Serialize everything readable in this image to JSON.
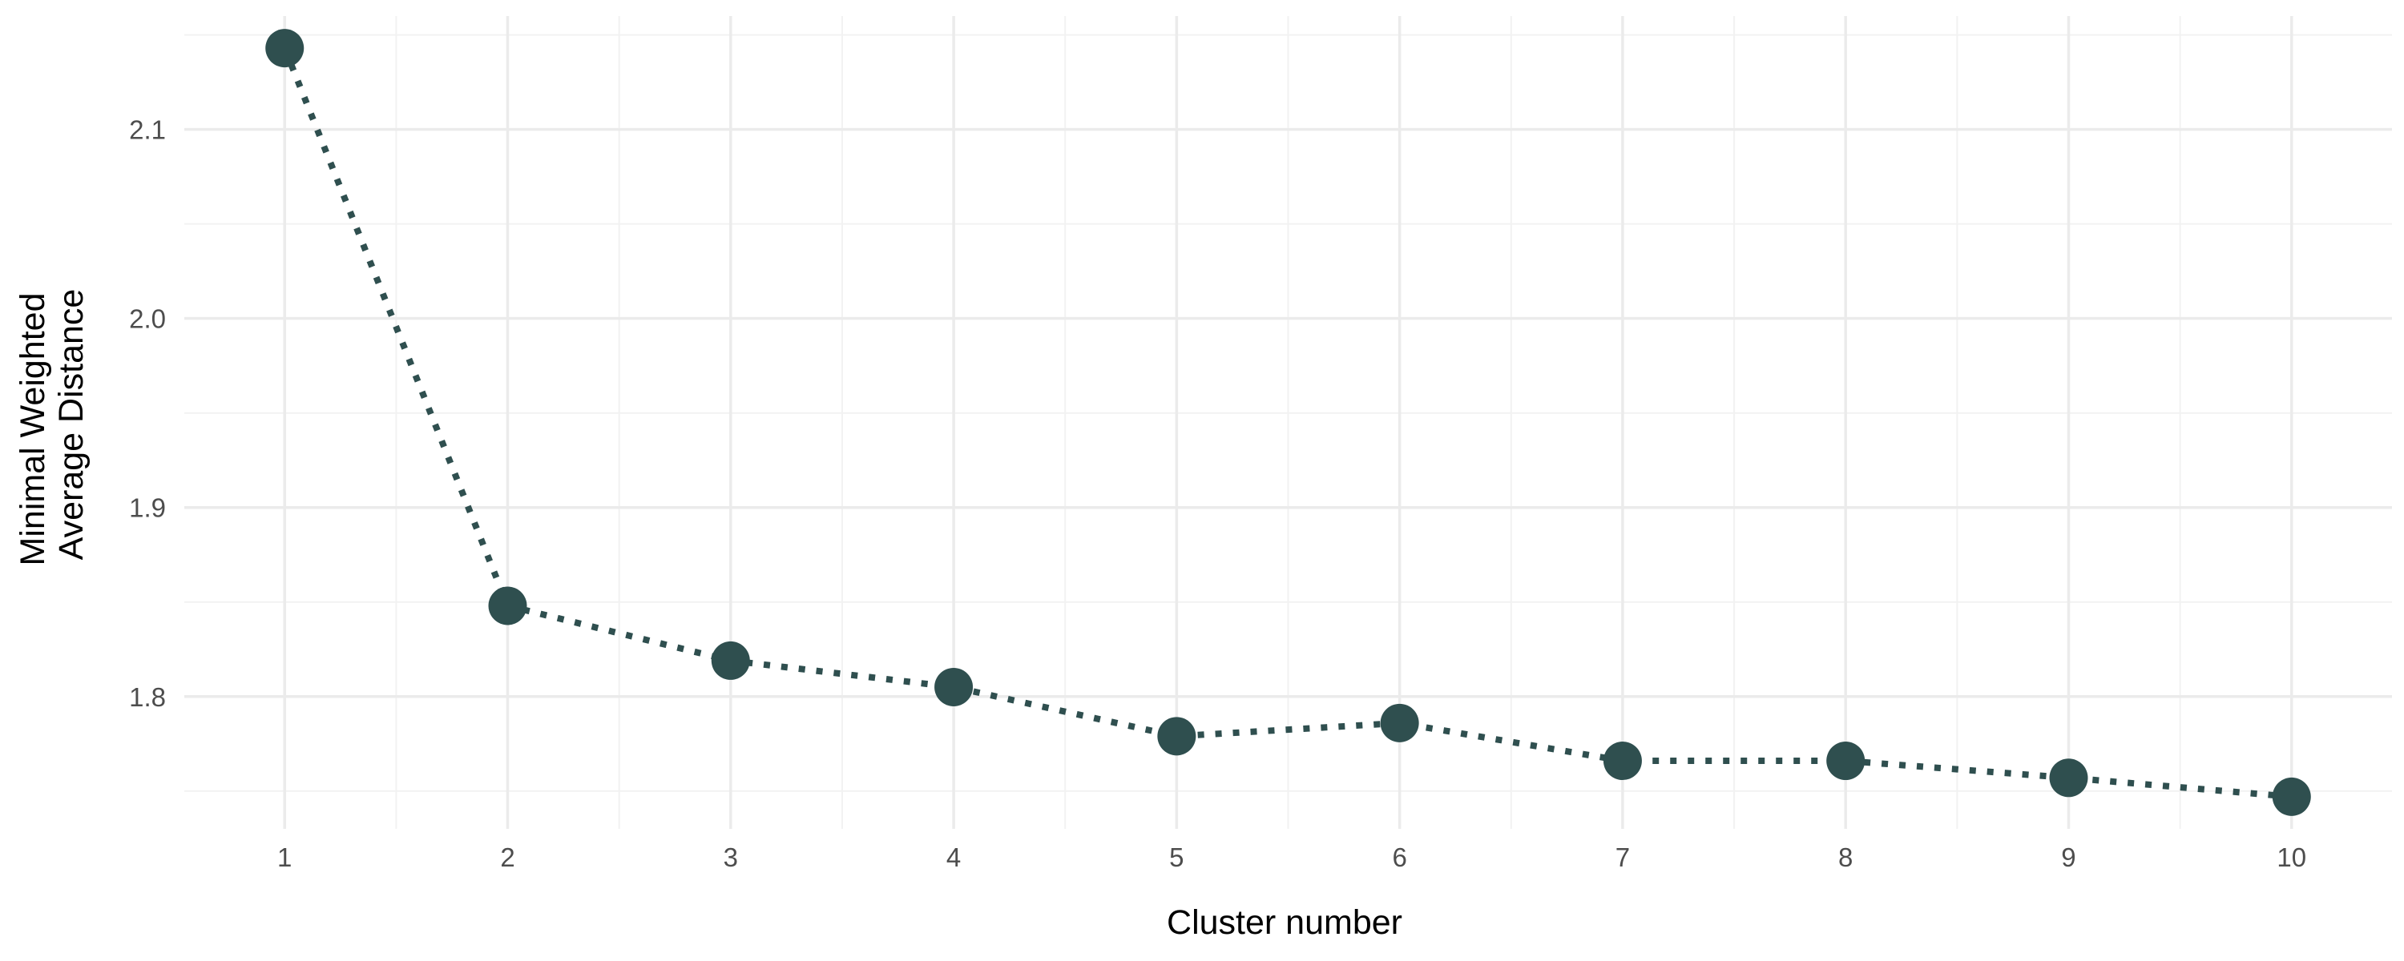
{
  "chart_data": {
    "type": "line",
    "title": "",
    "xlabel": "Cluster number",
    "ylabel_lines": [
      "Minimal Weighted",
      "Average Distance"
    ],
    "x": [
      1,
      2,
      3,
      4,
      5,
      6,
      7,
      8,
      9,
      10
    ],
    "series": [
      {
        "values": [
          2.143,
          1.848,
          1.819,
          1.805,
          1.779,
          1.786,
          1.766,
          1.766,
          1.757,
          1.747
        ]
      }
    ],
    "xlim": [
      0.55,
      10.45
    ],
    "ylim": [
      1.73,
      2.16
    ],
    "x_ticks": [
      1,
      2,
      3,
      4,
      5,
      6,
      7,
      8,
      9,
      10
    ],
    "y_ticks": [
      1.8,
      1.9,
      2.0,
      2.1
    ],
    "y_tick_labels": [
      "1.8",
      "1.9",
      "2.0",
      "2.1"
    ],
    "line_style": "dotted",
    "marker": "circle",
    "grid": true,
    "legend": "none",
    "colors": {
      "series": "#2f4f4f",
      "grid_major": "#ebebeb",
      "grid_minor": "#f2f2f2",
      "tick_text": "#4d4d4d",
      "title_text": "#000000"
    }
  }
}
